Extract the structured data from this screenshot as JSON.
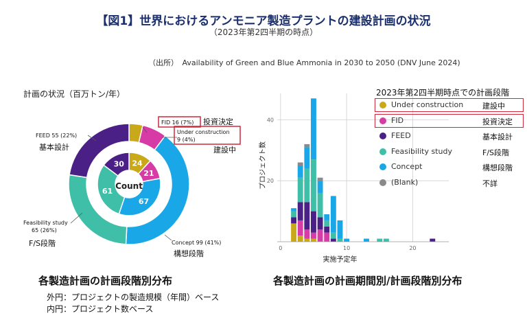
{
  "header": {
    "title": "【図1】世界におけるアンモニア製造プラントの建設計画の状況",
    "subtitle": "（2023年第2四半期の時点）",
    "source": "（出所）　Availability of Green and Blue Ammonia in 2030 to 2050 (DNV June 2024)"
  },
  "left": {
    "heading": "計画の状況（百万トン/年）",
    "center_label": "Count",
    "caption": "各製造計画の計画段階別分布",
    "note1": "外円：プロジェクトの製造規模（年間）ベース",
    "note2": "内円：プロジェクト数ベース",
    "callouts": {
      "fid": "FID 16 (7%)",
      "fid_jp": "投資決定",
      "uc1": "Under construction",
      "uc2": "9 (4%)",
      "uc_jp": "建設中",
      "feed": "FEED 55 (22%)",
      "feed_jp": "基本設計",
      "fs1": "Feasibility study",
      "fs2": "65 (26%)",
      "fs_jp": "F/S段階",
      "concept": "Concept 99 (41%)",
      "concept_jp": "構想段階"
    }
  },
  "right": {
    "legend_title": "2023年第2四半期時点での計画段階",
    "caption": "各製造計画の計画期間別/計画段階別分布"
  },
  "colors": {
    "under_construction": "#c9a81a",
    "fid": "#d63ba6",
    "feed": "#4a1f86",
    "feasibility": "#3fbfa7",
    "concept": "#1aa7e8",
    "blank": "#8a8a8a",
    "highlight": "#d0283a",
    "title": "#1a2f6e"
  },
  "chart_data": [
    {
      "type": "pie",
      "subtype": "double-donut",
      "categories": [
        "Under construction",
        "FID",
        "Concept",
        "Feasibility study",
        "FEED"
      ],
      "outer_ring": {
        "name": "製造規模（百万トン/年）",
        "values": [
          9,
          16,
          99,
          65,
          55
        ],
        "percent": [
          4,
          7,
          41,
          26,
          22
        ]
      },
      "inner_ring": {
        "name": "プロジェクト数",
        "values": [
          24,
          21,
          67,
          61,
          30
        ]
      }
    },
    {
      "type": "bar",
      "subtype": "stacked-histogram",
      "xlabel": "実施予定年",
      "ylabel": "プロジェクト数",
      "xticks": [
        0,
        10,
        20
      ],
      "yticks": [
        20,
        40
      ],
      "xlim": [
        -0.5,
        26.5
      ],
      "ylim": [
        0,
        50
      ],
      "grid": true,
      "legend_position": "top-right",
      "legend": [
        {
          "name": "Under construction",
          "jp": "建設中",
          "highlight": true
        },
        {
          "name": "FID",
          "jp": "投資決定",
          "highlight": true
        },
        {
          "name": "FEED",
          "jp": "基本設計"
        },
        {
          "name": "Feasibility study",
          "jp": "F/S段階"
        },
        {
          "name": "Concept",
          "jp": "構想段階"
        },
        {
          "name": "(Blank)",
          "jp": "不詳"
        }
      ],
      "x": [
        2,
        3,
        4,
        5,
        6,
        7,
        8,
        9,
        10,
        13,
        15,
        16,
        23
      ],
      "series": [
        {
          "name": "Under construction",
          "values": [
            6,
            2,
            1,
            1,
            0,
            0,
            0,
            0,
            0,
            0,
            0,
            0,
            0
          ]
        },
        {
          "name": "FID",
          "values": [
            0,
            5,
            3,
            2,
            4,
            3,
            0,
            0,
            0,
            0,
            0,
            0,
            0
          ]
        },
        {
          "name": "FEED",
          "values": [
            2,
            6,
            9,
            7,
            4,
            2,
            1,
            0,
            0,
            0,
            0,
            0,
            1
          ]
        },
        {
          "name": "Feasibility study",
          "values": [
            2,
            8,
            11,
            17,
            8,
            2,
            2,
            1,
            0,
            0,
            1,
            1,
            0
          ]
        },
        {
          "name": "Concept",
          "values": [
            1,
            4,
            7,
            20,
            4,
            2,
            12,
            6,
            1,
            1,
            0,
            0,
            0
          ]
        },
        {
          "name": "(Blank)",
          "values": [
            0,
            1,
            1,
            0,
            1,
            0,
            0,
            0,
            0,
            0,
            0,
            0,
            0
          ]
        }
      ]
    }
  ]
}
